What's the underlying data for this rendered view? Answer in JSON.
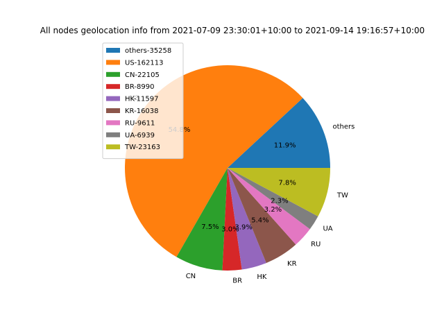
{
  "chart_data": {
    "type": "pie",
    "title": "All nodes geolocation info from 2021-07-09 23:30:01+10:00 to 2021-09-14 19:16:57+10:00",
    "start_angle_deg": 0,
    "direction": "counterclockwise",
    "legend_position": "upper-left",
    "slices": [
      {
        "label": "others",
        "legend": "others-35258",
        "value": 35258,
        "pct_label": "11.9%",
        "color": "#1f77b4"
      },
      {
        "label": "US",
        "legend": "US-162113",
        "value": 162113,
        "pct_label": "54.8%",
        "color": "#ff7f0e"
      },
      {
        "label": "CN",
        "legend": "CN-22105",
        "value": 22105,
        "pct_label": "7.5%",
        "color": "#2ca02c"
      },
      {
        "label": "BR",
        "legend": "BR-8990",
        "value": 8990,
        "pct_label": "3.0%",
        "color": "#d62728"
      },
      {
        "label": "HK",
        "legend": "HK-11597",
        "value": 11597,
        "pct_label": "3.9%",
        "color": "#9467bd"
      },
      {
        "label": "KR",
        "legend": "KR-16038",
        "value": 16038,
        "pct_label": "5.4%",
        "color": "#8c564b"
      },
      {
        "label": "RU",
        "legend": "RU-9611",
        "value": 9611,
        "pct_label": "3.2%",
        "color": "#e377c2"
      },
      {
        "label": "UA",
        "legend": "UA-6939",
        "value": 6939,
        "pct_label": "2.3%",
        "color": "#7f7f7f"
      },
      {
        "label": "TW",
        "legend": "TW-23163",
        "value": 23163,
        "pct_label": "7.8%",
        "color": "#bcbd22"
      }
    ]
  }
}
